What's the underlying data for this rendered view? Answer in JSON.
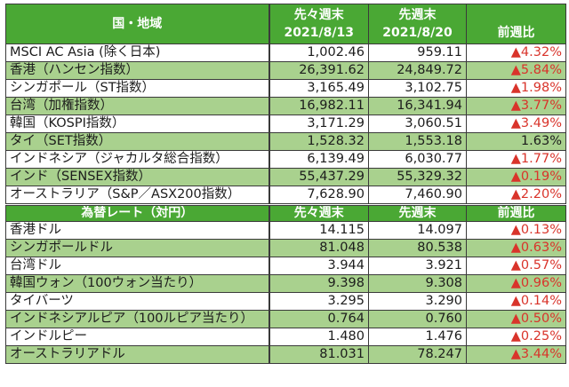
{
  "indices": {
    "header": {
      "name": "国・地域",
      "prev2_line1": "先々週末",
      "prev2_line2": "2021/8/13",
      "prev_line1": "先週末",
      "prev_line2": "2021/8/20",
      "change": "前週比"
    },
    "rows": [
      {
        "name": "MSCI AC Asia (除く日本)",
        "prev2": "1,002.46",
        "prev": "959.11",
        "change": "▲4.32%",
        "negative": true
      },
      {
        "name": "香港（ハンセン指数）",
        "prev2": "26,391.62",
        "prev": "24,849.72",
        "change": "▲5.84%",
        "negative": true
      },
      {
        "name": "シンガポール（ST指数）",
        "prev2": "3,165.49",
        "prev": "3,102.75",
        "change": "▲1.98%",
        "negative": true
      },
      {
        "name": "台湾（加権指数）",
        "prev2": "16,982.11",
        "prev": "16,341.94",
        "change": "▲3.77%",
        "negative": true
      },
      {
        "name": "韓国（KOSPI指数）",
        "prev2": "3,171.29",
        "prev": "3,060.51",
        "change": "▲3.49%",
        "negative": true
      },
      {
        "name": "タイ（SET指数）",
        "prev2": "1,528.32",
        "prev": "1,553.18",
        "change": "1.63%",
        "negative": false
      },
      {
        "name": "インドネシア（ジャカルタ総合指数）",
        "prev2": "6,139.49",
        "prev": "6,030.77",
        "change": "▲1.77%",
        "negative": true
      },
      {
        "name": "インド（SENSEX指数）",
        "prev2": "55,437.29",
        "prev": "55,329.32",
        "change": "▲0.19%",
        "negative": true
      },
      {
        "name": "オーストラリア（S&P／ASX200指数）",
        "prev2": "7,628.90",
        "prev": "7,460.90",
        "change": "▲2.20%",
        "negative": true
      }
    ]
  },
  "fx": {
    "header": {
      "name": "為替レート（対円）",
      "prev2": "先々週末",
      "prev": "先週末",
      "change": "前週比"
    },
    "rows": [
      {
        "name": "香港ドル",
        "prev2": "14.115",
        "prev": "14.097",
        "change": "▲0.13%",
        "negative": true
      },
      {
        "name": "シンガポールドル",
        "prev2": "81.048",
        "prev": "80.538",
        "change": "▲0.63%",
        "negative": true
      },
      {
        "name": "台湾ドル",
        "prev2": "3.944",
        "prev": "3.921",
        "change": "▲0.57%",
        "negative": true
      },
      {
        "name": "韓国ウォン（100ウォン当たり）",
        "prev2": "9.398",
        "prev": "9.308",
        "change": "▲0.96%",
        "negative": true
      },
      {
        "name": "タイバーツ",
        "prev2": "3.295",
        "prev": "3.290",
        "change": "▲0.14%",
        "negative": true
      },
      {
        "name": "インドネシアルピア（100ルピア当たり）",
        "prev2": "0.764",
        "prev": "0.760",
        "change": "▲0.50%",
        "negative": true
      },
      {
        "name": "インドルピー",
        "prev2": "1.480",
        "prev": "1.476",
        "change": "▲0.25%",
        "negative": true
      },
      {
        "name": "オーストラリアドル",
        "prev2": "81.031",
        "prev": "78.247",
        "change": "▲3.44%",
        "negative": true
      }
    ]
  },
  "colors": {
    "header_green": "#4aa834",
    "band_green": "#a9d18e",
    "negative_red": "#d9342b",
    "text": "#1c1c1c"
  }
}
